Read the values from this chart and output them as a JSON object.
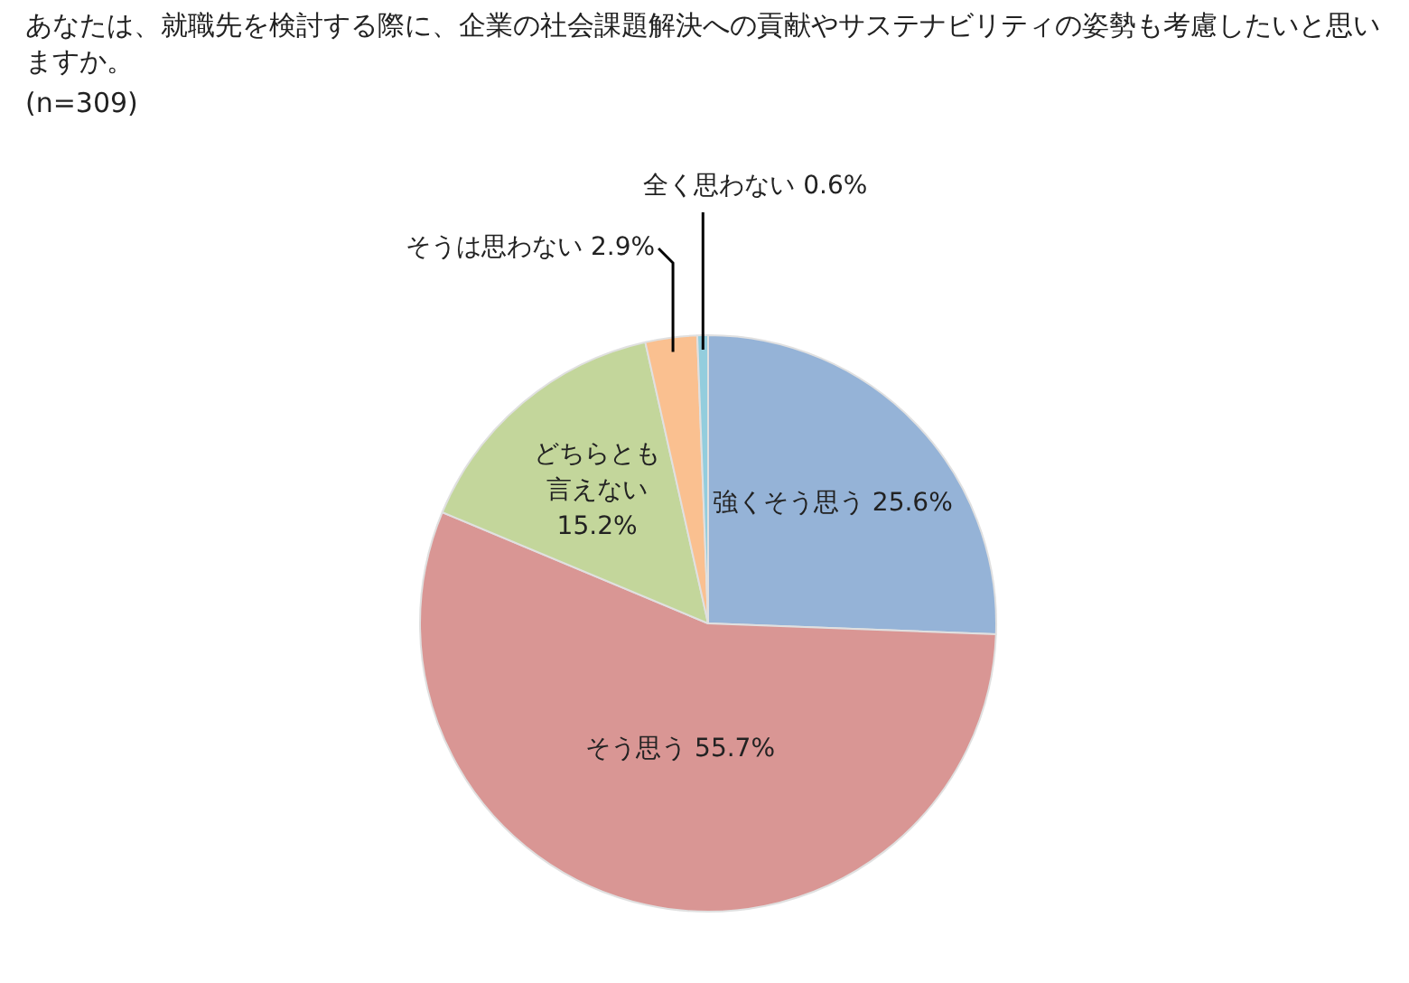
{
  "chart_data": {
    "type": "pie",
    "title": "あなたは、就職先を検討する際に、企業の社会課題解決への貢献やサステナビリティの姿勢も考慮したいと思いますか。",
    "subtitle": "(n=309)",
    "categories": [
      "強くそう思う",
      "そう思う",
      "どちらとも言えない",
      "そうは思わない",
      "全く思わない"
    ],
    "values": [
      25.6,
      55.7,
      15.2,
      2.9,
      0.6
    ],
    "colors": [
      "#95b3d7",
      "#d99694",
      "#c3d69b",
      "#fac090",
      "#93cddd"
    ],
    "value_labels": [
      "25.6%",
      "55.7%",
      "15.2%",
      "2.9%",
      "0.6%"
    ],
    "legend": false
  }
}
